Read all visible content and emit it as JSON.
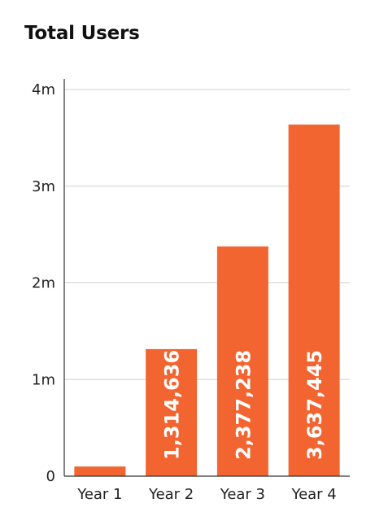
{
  "chart_data": {
    "type": "bar",
    "title": "Total Users",
    "xlabel": "",
    "ylabel": "",
    "categories": [
      "Year 1",
      "Year 2",
      "Year 3",
      "Year 4"
    ],
    "values": [
      100000,
      1314636,
      2377238,
      3637445
    ],
    "data_labels": [
      "",
      "1,314,636",
      "2,377,238",
      "3,637,445"
    ],
    "ylim": [
      0,
      4000000
    ],
    "yticks": [
      0,
      1000000,
      2000000,
      3000000,
      4000000
    ],
    "ytick_labels": [
      "0",
      "1m",
      "2m",
      "3m",
      "4m"
    ],
    "grid": true,
    "bar_color": "#f26430",
    "grid_color": "#d0d0d0",
    "axis_color": "#333333"
  }
}
